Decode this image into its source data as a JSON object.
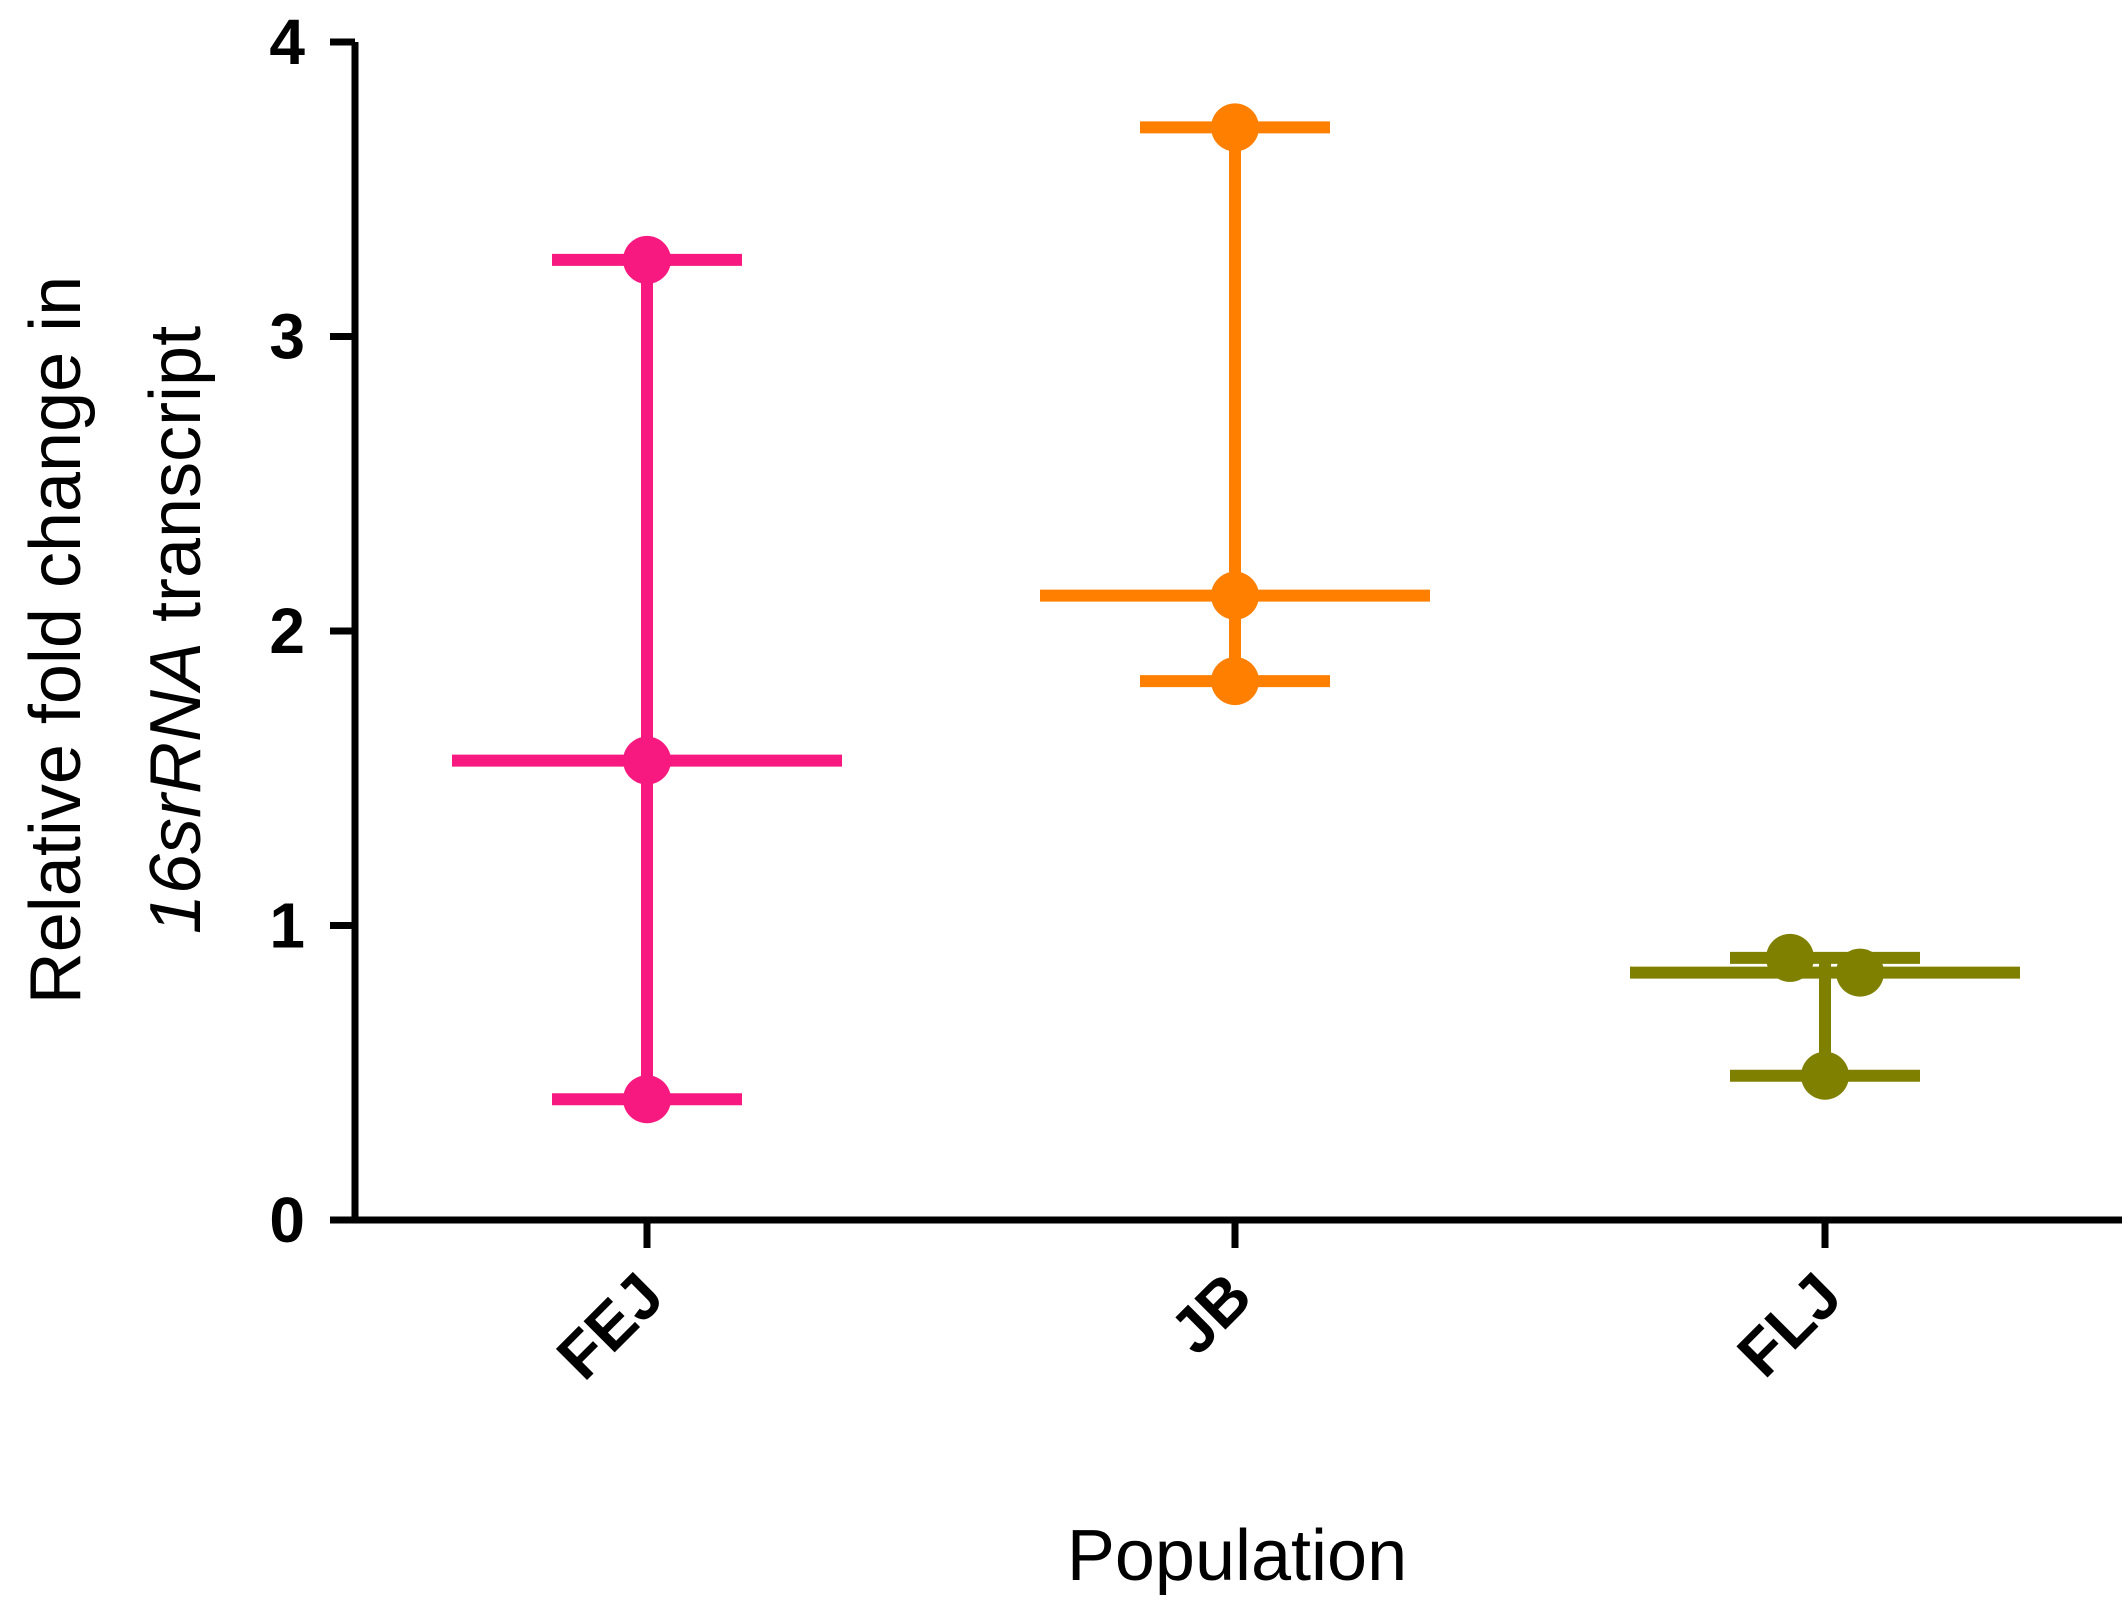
{
  "chart_data": {
    "type": "scatter",
    "title": "",
    "xlabel": "Population",
    "ylabel_line1": "Relative fold change in",
    "ylabel_line2_italic": "16srRNA",
    "ylabel_line2_rest": " transcript",
    "ylim": [
      0,
      4
    ],
    "yticks": [
      "0",
      "1",
      "2",
      "3",
      "4"
    ],
    "categories": [
      "FEJ",
      "JB",
      "FLJ"
    ],
    "grid": false,
    "series": [
      {
        "category": "FEJ",
        "color": "#f7197f",
        "points": [
          3.26,
          1.56,
          0.41
        ],
        "median": 1.56,
        "min": 0.41,
        "max": 3.26
      },
      {
        "category": "JB",
        "color": "#ff8000",
        "points": [
          3.71,
          2.12,
          1.83
        ],
        "median": 2.12,
        "min": 1.83,
        "max": 3.71
      },
      {
        "category": "FLJ",
        "color": "#808000",
        "points": [
          0.89,
          0.84,
          0.49
        ],
        "median": 0.84,
        "min": 0.49,
        "max": 0.89
      }
    ]
  }
}
